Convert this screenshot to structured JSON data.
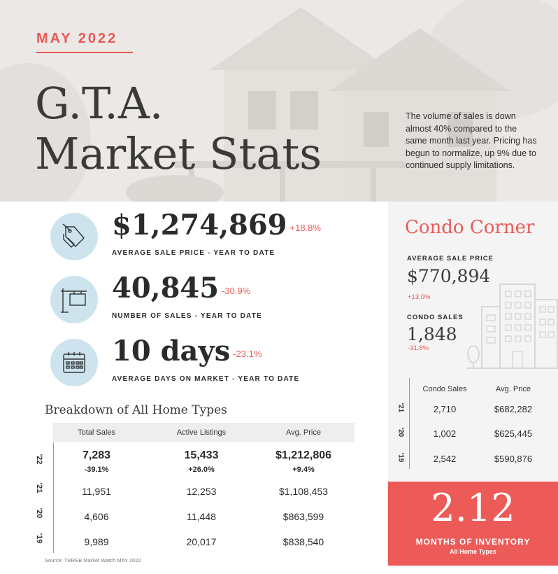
{
  "header": {
    "month": "MAY 2022",
    "title_line1": "G.T.A.",
    "title_line2": "Market Stats",
    "intro": "The volume of sales is down almost 40% compared to the same month last year.  Pricing has begun to normalize, up 9% due to continued supply limitations."
  },
  "stats": [
    {
      "value": "$1,274,869",
      "change": "+18.8%",
      "label": "AVERAGE SALE PRICE - YEAR TO DATE",
      "icon": "price-tag-icon"
    },
    {
      "value": "40,845",
      "change": "-30.9%",
      "label": "NUMBER OF SALES - YEAR TO DATE",
      "icon": "for-sale-sign-icon"
    },
    {
      "value": "10 days",
      "change": "-23.1%",
      "label": "AVERAGE DAYS ON MARKET - YEAR TO DATE",
      "icon": "calendar-icon"
    }
  ],
  "breakdown": {
    "title": "Breakdown of All Home Types",
    "headers": [
      "Total Sales",
      "Active Listings",
      "Avg. Price"
    ],
    "rows": [
      {
        "year": "'22",
        "cells": [
          "7,283",
          "15,433",
          "$1,212,806"
        ],
        "changes": [
          "-39.1%",
          "+26.0%",
          "+9.4%"
        ]
      },
      {
        "year": "'21",
        "cells": [
          "11,951",
          "12,253",
          "$1,108,453"
        ]
      },
      {
        "year": "'20",
        "cells": [
          "4,606",
          "11,448",
          "$863,599"
        ]
      },
      {
        "year": "'19",
        "cells": [
          "9,989",
          "20,017",
          "$838,540"
        ]
      }
    ],
    "source": "Source: TRREB Market Watch MAY 2022"
  },
  "condo": {
    "title": "Condo Corner",
    "avg_price_label": "AVERAGE SALE PRICE",
    "avg_price": "$770,894",
    "avg_price_change": "+13.0%",
    "sales_label": "CONDO SALES",
    "sales": "1,848",
    "sales_change": "-31.8%",
    "headers": [
      "Condo Sales",
      "Avg. Price"
    ],
    "rows": [
      {
        "year": "'21",
        "cells": [
          "2,710",
          "$682,282"
        ]
      },
      {
        "year": "'20",
        "cells": [
          "1,002",
          "$625,445"
        ]
      },
      {
        "year": "'19",
        "cells": [
          "2,542",
          "$590,876"
        ]
      }
    ]
  },
  "inventory": {
    "value": "2.12",
    "label": "MONTHS OF INVENTORY",
    "sublabel": "All Home Types"
  },
  "colors": {
    "accent": "#e85a57",
    "icon_circle": "#cde4ef",
    "inventory_bg": "#ec5b58"
  }
}
